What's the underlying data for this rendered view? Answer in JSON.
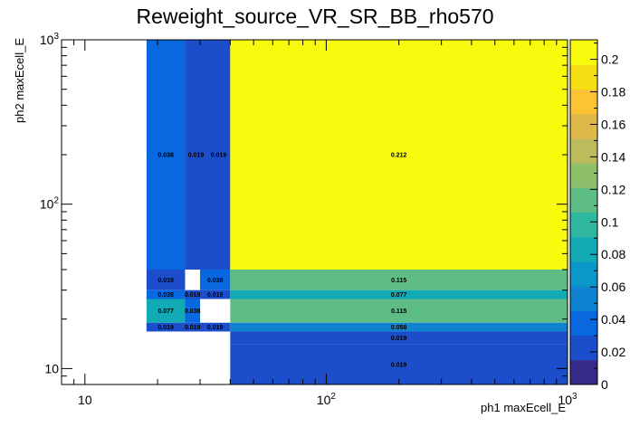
{
  "chart_data": {
    "type": "heatmap",
    "title": "Reweight_source_VR_SR_BB_rho570",
    "xlabel": "ph1 maxEcell_E",
    "ylabel": "ph2 maxEcell_E",
    "x_scale": "log",
    "y_scale": "log",
    "xlim": [
      8,
      1000
    ],
    "ylim": [
      8,
      1000
    ],
    "x_ticks": [
      {
        "value": 10,
        "label": "10",
        "exp": ""
      },
      {
        "value": 100,
        "label": "10",
        "exp": "2"
      },
      {
        "value": 1000,
        "label": "10",
        "exp": "3"
      }
    ],
    "y_ticks": [
      {
        "value": 10,
        "label": "10",
        "exp": ""
      },
      {
        "value": 100,
        "label": "10",
        "exp": "2"
      },
      {
        "value": 1000,
        "label": "10",
        "exp": "3"
      }
    ],
    "colorbar": {
      "min": 0,
      "max": 0.212,
      "ticks": [
        0,
        0.02,
        0.04,
        0.06,
        0.08,
        0.1,
        0.12,
        0.14,
        0.16,
        0.18,
        0.2
      ],
      "tick_labels": [
        "0",
        "0.02",
        "0.04",
        "0.06",
        "0.08",
        "0.1",
        "0.12",
        "0.14",
        "0.16",
        "0.18",
        "0.2"
      ],
      "palette": [
        "#352a87",
        "#1c4ecc",
        "#0868e0",
        "#1082d2",
        "#0b98c8",
        "#12aab4",
        "#2fb7a0",
        "#5dbd84",
        "#90bf6c",
        "#bdbc5c",
        "#deb94a",
        "#fcc333",
        "#f6e014",
        "#f9fb0e"
      ]
    },
    "cells": [
      {
        "x0": 18,
        "x1": 26,
        "y0": 40,
        "y1": 1000,
        "value": 0.038,
        "label": "0.038"
      },
      {
        "x0": 26,
        "x1": 32,
        "y0": 40,
        "y1": 1000,
        "value": 0.019,
        "label": "0.019"
      },
      {
        "x0": 32,
        "x1": 40,
        "y0": 40,
        "y1": 1000,
        "value": 0.019,
        "label": "0.019"
      },
      {
        "x0": 40,
        "x1": 1000,
        "y0": 40,
        "y1": 1000,
        "value": 0.212,
        "label": "0.212"
      },
      {
        "x0": 18,
        "x1": 26,
        "y0": 30,
        "y1": 40,
        "value": 0.019,
        "label": "0.019"
      },
      {
        "x0": 30,
        "x1": 40,
        "y0": 30,
        "y1": 40,
        "value": 0.038,
        "label": "0.038"
      },
      {
        "x0": 40,
        "x1": 1000,
        "y0": 30,
        "y1": 40,
        "value": 0.115,
        "label": "0.115"
      },
      {
        "x0": 18,
        "x1": 26,
        "y0": 26.5,
        "y1": 30,
        "value": 0.038,
        "label": "0.038"
      },
      {
        "x0": 26,
        "x1": 30,
        "y0": 26.5,
        "y1": 30,
        "value": 0.019,
        "label": "0.019"
      },
      {
        "x0": 30,
        "x1": 40,
        "y0": 26.5,
        "y1": 30,
        "value": 0.019,
        "label": "0.019"
      },
      {
        "x0": 40,
        "x1": 1000,
        "y0": 26.5,
        "y1": 30,
        "value": 0.077,
        "label": "0.077"
      },
      {
        "x0": 18,
        "x1": 26,
        "y0": 19,
        "y1": 26.5,
        "value": 0.077,
        "label": "0.077"
      },
      {
        "x0": 26,
        "x1": 30,
        "y0": 19,
        "y1": 26.5,
        "value": 0.038,
        "label": "0.038"
      },
      {
        "x0": 40,
        "x1": 1000,
        "y0": 19,
        "y1": 26.5,
        "value": 0.115,
        "label": "0.115"
      },
      {
        "x0": 18,
        "x1": 26,
        "y0": 16.8,
        "y1": 19,
        "value": 0.019,
        "label": "0.019"
      },
      {
        "x0": 26,
        "x1": 30,
        "y0": 16.8,
        "y1": 19,
        "value": 0.019,
        "label": "0.019"
      },
      {
        "x0": 30,
        "x1": 40,
        "y0": 16.8,
        "y1": 19,
        "value": 0.019,
        "label": "0.019"
      },
      {
        "x0": 40,
        "x1": 1000,
        "y0": 16.8,
        "y1": 19,
        "value": 0.058,
        "label": "0.058"
      },
      {
        "x0": 40,
        "x1": 1000,
        "y0": 14,
        "y1": 16.8,
        "value": 0.019,
        "label": "0.019"
      },
      {
        "x0": 40,
        "x1": 1000,
        "y0": 8,
        "y1": 14,
        "value": 0.019,
        "label": "0.019"
      }
    ]
  }
}
